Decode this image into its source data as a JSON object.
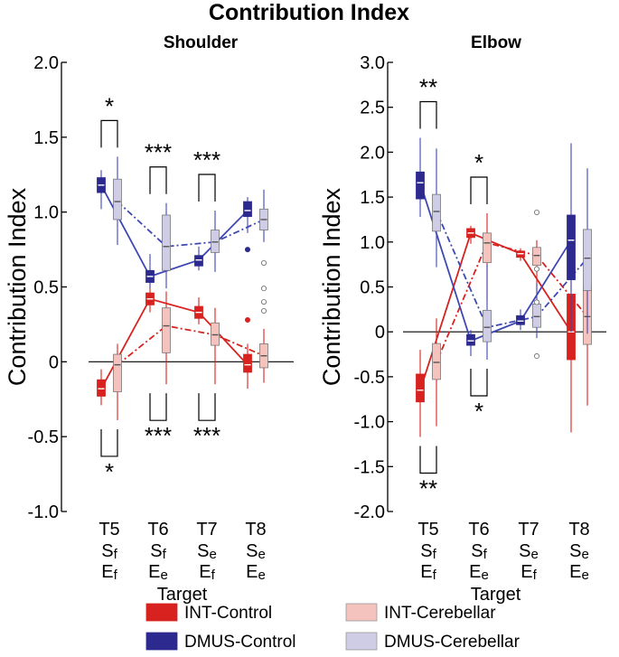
{
  "figure_title": "Contribution Index",
  "legend": [
    {
      "label": "INT-Control",
      "color": "#d7221f",
      "style": "solid"
    },
    {
      "label": "INT-Cerebellar",
      "color": "#f4c3bd",
      "style": "dashdot"
    },
    {
      "label": "DMUS-Control",
      "color": "#2c2a8f",
      "style": "solid"
    },
    {
      "label": "DMUS-Cerebellar",
      "color": "#cfcde6",
      "style": "dashdot"
    }
  ],
  "line_colors": {
    "int": "#d7221f",
    "dmus": "#3e48b3"
  },
  "chart_data": [
    {
      "type": "box",
      "title": "Shoulder",
      "ylabel": "Contribution Index",
      "xlabel": "Target",
      "ylim": [
        -1.0,
        2.0
      ],
      "yticks": [
        "-1.0",
        "-0.5",
        "0",
        "0.5",
        "1.0",
        "1.5",
        "2.0"
      ],
      "ytick_values": [
        -1.0,
        -0.5,
        0,
        0.5,
        1.0,
        1.5,
        2.0
      ],
      "categories": [
        {
          "target": "T5",
          "s": "S",
          "s_sub": "f",
          "e": "E",
          "e_sub": "f"
        },
        {
          "target": "T6",
          "s": "S",
          "s_sub": "f",
          "e": "E",
          "e_sub": "e"
        },
        {
          "target": "T7",
          "s": "S",
          "s_sub": "e",
          "e": "E",
          "e_sub": "f"
        },
        {
          "target": "T8",
          "s": "S",
          "s_sub": "e",
          "e": "E",
          "e_sub": "e"
        }
      ],
      "series": [
        {
          "name": "INT-Control",
          "medians": [
            -0.18,
            0.42,
            0.33,
            -0.02
          ],
          "boxes": [
            [
              -0.23,
              -0.12
            ],
            [
              0.38,
              0.46
            ],
            [
              0.29,
              0.37
            ],
            [
              -0.07,
              0.05
            ]
          ],
          "whiskers": [
            [
              -0.29,
              -0.05
            ],
            [
              0.33,
              0.55
            ],
            [
              0.25,
              0.43
            ],
            [
              -0.18,
              0.12
            ]
          ],
          "outliers": [
            [],
            [],
            [],
            [
              0.28
            ]
          ]
        },
        {
          "name": "INT-Cerebellar",
          "medians": [
            -0.02,
            0.24,
            0.18,
            0.04
          ],
          "boxes": [
            [
              -0.2,
              0.05
            ],
            [
              0.06,
              0.36
            ],
            [
              0.11,
              0.26
            ],
            [
              -0.04,
              0.12
            ]
          ],
          "whiskers": [
            [
              -0.39,
              0.12
            ],
            [
              -0.15,
              0.47
            ],
            [
              -0.15,
              0.36
            ],
            [
              -0.14,
              0.22
            ]
          ],
          "outliers": [
            [],
            [],
            [],
            [
              0.34,
              0.4,
              0.49
            ]
          ]
        },
        {
          "name": "DMUS-Control",
          "medians": [
            1.18,
            0.57,
            0.68,
            1.01
          ],
          "boxes": [
            [
              1.13,
              1.23
            ],
            [
              0.53,
              0.61
            ],
            [
              0.64,
              0.71
            ],
            [
              0.97,
              1.07
            ]
          ],
          "whiskers": [
            [
              1.02,
              1.28
            ],
            [
              0.49,
              0.72
            ],
            [
              0.61,
              0.77
            ],
            [
              0.86,
              1.1
            ]
          ],
          "outliers": [
            [],
            [],
            [],
            [
              0.75
            ]
          ]
        },
        {
          "name": "DMUS-Cerebellar",
          "medians": [
            1.07,
            0.77,
            0.8,
            0.95
          ],
          "boxes": [
            [
              0.95,
              1.22
            ],
            [
              0.61,
              0.98
            ],
            [
              0.73,
              0.88
            ],
            [
              0.88,
              1.02
            ]
          ],
          "whiskers": [
            [
              0.78,
              1.37
            ],
            [
              0.49,
              1.06
            ],
            [
              0.6,
              1.01
            ],
            [
              0.8,
              1.15
            ]
          ],
          "outliers": [
            [],
            [],
            [],
            [
              0.66
            ]
          ]
        }
      ],
      "annotations": [
        {
          "text": "*",
          "group": 0,
          "side": "above"
        },
        {
          "text": "***",
          "group": 1,
          "side": "above"
        },
        {
          "text": "***",
          "group": 2,
          "side": "above"
        },
        {
          "text": "*",
          "group": 0,
          "side": "below"
        },
        {
          "text": "***",
          "group": 1,
          "side": "below"
        },
        {
          "text": "***",
          "group": 2,
          "side": "below"
        }
      ]
    },
    {
      "type": "box",
      "title": "Elbow",
      "ylabel": "Contribution Index",
      "xlabel": "Target",
      "ylim": [
        -2.0,
        3.0
      ],
      "yticks": [
        "-2.0",
        "-1.5",
        "-1.0",
        "-0.5",
        "0",
        "0.5",
        "1.0",
        "1.5",
        "2.0",
        "2.5",
        "3.0"
      ],
      "ytick_values": [
        -2.0,
        -1.5,
        -1.0,
        -0.5,
        0,
        0.5,
        1.0,
        1.5,
        2.0,
        2.5,
        3.0
      ],
      "categories": [
        {
          "target": "T5",
          "s": "S",
          "s_sub": "f",
          "e": "E",
          "e_sub": "f"
        },
        {
          "target": "T6",
          "s": "S",
          "s_sub": "f",
          "e": "E",
          "e_sub": "e"
        },
        {
          "target": "T7",
          "s": "S",
          "s_sub": "e",
          "e": "E",
          "e_sub": "f"
        },
        {
          "target": "T8",
          "s": "S",
          "s_sub": "e",
          "e": "E",
          "e_sub": "e"
        }
      ],
      "series": [
        {
          "name": "INT-Control",
          "medians": [
            -0.65,
            1.1,
            0.87,
            0.0
          ],
          "boxes": [
            [
              -0.78,
              -0.47
            ],
            [
              1.05,
              1.15
            ],
            [
              0.83,
              0.9
            ],
            [
              -0.31,
              0.42
            ]
          ],
          "whiskers": [
            [
              -1.17,
              -0.2
            ],
            [
              0.98,
              1.18
            ],
            [
              0.79,
              0.93
            ],
            [
              -1.12,
              0.8
            ]
          ],
          "outliers": [
            [],
            [],
            [],
            []
          ]
        },
        {
          "name": "INT-Cerebellar",
          "medians": [
            -0.34,
            0.99,
            0.85,
            0.17
          ],
          "boxes": [
            [
              -0.53,
              -0.13
            ],
            [
              0.77,
              1.1
            ],
            [
              0.74,
              0.94
            ],
            [
              -0.14,
              0.52
            ]
          ],
          "whiskers": [
            [
              -1.05,
              0.15
            ],
            [
              0.35,
              1.32
            ],
            [
              0.45,
              1.02
            ],
            [
              -0.82,
              0.95
            ]
          ],
          "outliers": [
            [],
            [],
            [
              0.7
            ],
            []
          ]
        },
        {
          "name": "DMUS-Control",
          "medians": [
            1.66,
            -0.1,
            0.12,
            1.02
          ],
          "boxes": [
            [
              1.48,
              1.78
            ],
            [
              -0.15,
              -0.03
            ],
            [
              0.08,
              0.18
            ],
            [
              0.58,
              1.3
            ]
          ],
          "whiskers": [
            [
              1.28,
              2.16
            ],
            [
              -0.27,
              0.02
            ],
            [
              0.02,
              0.25
            ],
            [
              0.0,
              2.1
            ]
          ],
          "outliers": [
            [],
            [],
            [],
            []
          ]
        },
        {
          "name": "DMUS-Cerebellar",
          "medians": [
            1.34,
            0.05,
            0.17,
            0.82
          ],
          "boxes": [
            [
              1.12,
              1.53
            ],
            [
              -0.11,
              0.24
            ],
            [
              0.05,
              0.31
            ],
            [
              0.46,
              1.14
            ]
          ],
          "whiskers": [
            [
              0.72,
              2.04
            ],
            [
              -0.31,
              0.75
            ],
            [
              -0.07,
              0.54
            ],
            [
              -0.02,
              1.82
            ]
          ],
          "outliers": [
            [],
            [],
            [
              -0.27,
              0.33,
              1.33
            ],
            []
          ]
        }
      ],
      "annotations": [
        {
          "text": "**",
          "group": 0,
          "side": "above"
        },
        {
          "text": "*",
          "group": 1,
          "side": "above"
        },
        {
          "text": "**",
          "group": 0,
          "side": "below"
        },
        {
          "text": "*",
          "group": 1,
          "side": "below"
        }
      ]
    }
  ]
}
